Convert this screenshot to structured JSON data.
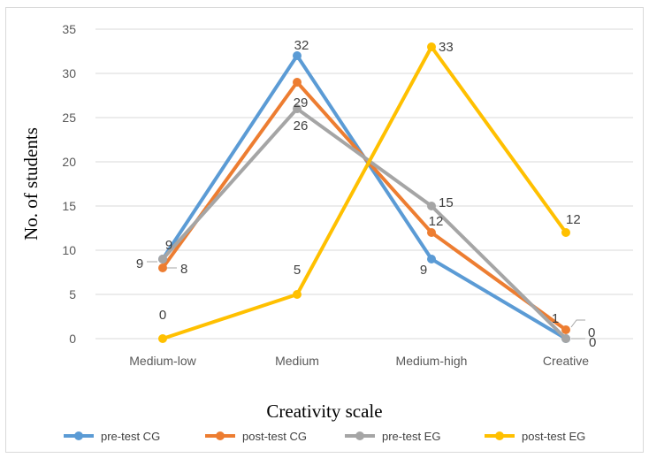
{
  "chart_data": {
    "type": "line",
    "title": "",
    "xlabel": "Creativity scale",
    "ylabel": "No. of students",
    "categories": [
      "Medium-low",
      "Medium",
      "Medium-high",
      "Creative"
    ],
    "ylim": [
      0,
      35
    ],
    "yticks": [
      0,
      5,
      10,
      15,
      20,
      25,
      30,
      35
    ],
    "grid": "horizontal",
    "legend": "bottom",
    "series": [
      {
        "name": "pre-test CG",
        "color": "#5B9BD5",
        "values": [
          9,
          32,
          9,
          0
        ]
      },
      {
        "name": "post-test CG",
        "color": "#ED7D31",
        "values": [
          8,
          29,
          12,
          1
        ]
      },
      {
        "name": "pre-test EG",
        "color": "#A5A5A5",
        "values": [
          9,
          26,
          15,
          0
        ]
      },
      {
        "name": "post-test EG",
        "color": "#FFC000",
        "values": [
          0,
          5,
          33,
          12
        ]
      }
    ],
    "data_labels": [
      {
        "series": 0,
        "point": 0,
        "text": "9"
      },
      {
        "series": 0,
        "point": 1,
        "text": "32"
      },
      {
        "series": 0,
        "point": 2,
        "text": "9"
      },
      {
        "series": 0,
        "point": 3,
        "text": "0"
      },
      {
        "series": 1,
        "point": 0,
        "text": "8"
      },
      {
        "series": 1,
        "point": 1,
        "text": "29"
      },
      {
        "series": 1,
        "point": 2,
        "text": "12"
      },
      {
        "series": 1,
        "point": 3,
        "text": "1"
      },
      {
        "series": 2,
        "point": 0,
        "text": "9"
      },
      {
        "series": 2,
        "point": 1,
        "text": "26"
      },
      {
        "series": 2,
        "point": 2,
        "text": "15"
      },
      {
        "series": 2,
        "point": 3,
        "text": "0"
      },
      {
        "series": 3,
        "point": 0,
        "text": "0"
      },
      {
        "series": 3,
        "point": 1,
        "text": "5"
      },
      {
        "series": 3,
        "point": 2,
        "text": "33"
      },
      {
        "series": 3,
        "point": 3,
        "text": "12"
      }
    ]
  }
}
